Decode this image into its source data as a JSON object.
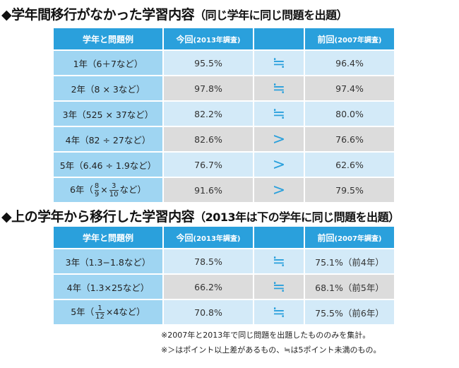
{
  "section1": {
    "title": "◆学年間移行がなかった学習内容",
    "subtitle": "（同じ学年に同じ問題を出題）",
    "headers": [
      "学年と問題例",
      "今回",
      "(2013年調査)",
      "",
      "前回",
      "(2007年調査)"
    ],
    "rows": [
      {
        "label": [
          {
            "t": "1年（6＋7など）"
          }
        ],
        "current": "95.5%",
        "compare": "≒",
        "previous": "96.4%",
        "shade": "blue"
      },
      {
        "label": [
          {
            "t": "2年（8 × 3など）"
          }
        ],
        "current": "97.8%",
        "compare": "≒",
        "previous": "97.4%",
        "shade": "gray"
      },
      {
        "label": [
          {
            "t": "3年（525 × 37など）"
          }
        ],
        "current": "82.2%",
        "compare": "≒",
        "previous": "80.0%",
        "shade": "blue"
      },
      {
        "label": [
          {
            "t": "4年（82 ÷ 27など）"
          }
        ],
        "current": "82.6%",
        "compare": ">",
        "previous": "76.6%",
        "shade": "gray"
      },
      {
        "label": [
          {
            "t": "5年（6.46 ÷ 1.9など）"
          }
        ],
        "current": "76.7%",
        "compare": ">",
        "previous": "62.6%",
        "shade": "blue"
      },
      {
        "label": [
          {
            "t": "6年（"
          },
          {
            "num": "8",
            "den": "9"
          },
          {
            "t": "×"
          },
          {
            "num": "3",
            "den": "10"
          },
          {
            "t": "など）"
          }
        ],
        "current": "91.6%",
        "compare": ">",
        "previous": "79.5%",
        "shade": "gray"
      }
    ]
  },
  "section2": {
    "title": "◆上の学年から移行した学習内容",
    "subtitle": "（2013年は下の学年に同じ問題を出題）",
    "headers": [
      "学年と問題例",
      "今回",
      "(2013年調査)",
      "",
      "前回",
      "(2007年調査)"
    ],
    "rows": [
      {
        "label": [
          {
            "t": "3年（1.3−1.8など）"
          }
        ],
        "current": "78.5%",
        "compare": "≒",
        "previous": "75.1%（前4年）",
        "shade": "blue"
      },
      {
        "label": [
          {
            "t": "4年（1.3×25など）"
          }
        ],
        "current": "66.2%",
        "compare": "≒",
        "previous": "68.1%（前5年）",
        "shade": "gray"
      },
      {
        "label": [
          {
            "t": "5年（"
          },
          {
            "num": "1",
            "den": "12"
          },
          {
            "t": "×4など）"
          }
        ],
        "current": "70.8%",
        "compare": "≒",
        "previous": "75.5%（前6年）",
        "shade": "blue"
      }
    ]
  },
  "notes": [
    "※2007年と2013年で同じ問題を出題したもののみを集計。",
    "※＞はポイント以上差があるもの、≒は5ポイント未満のもの。"
  ]
}
